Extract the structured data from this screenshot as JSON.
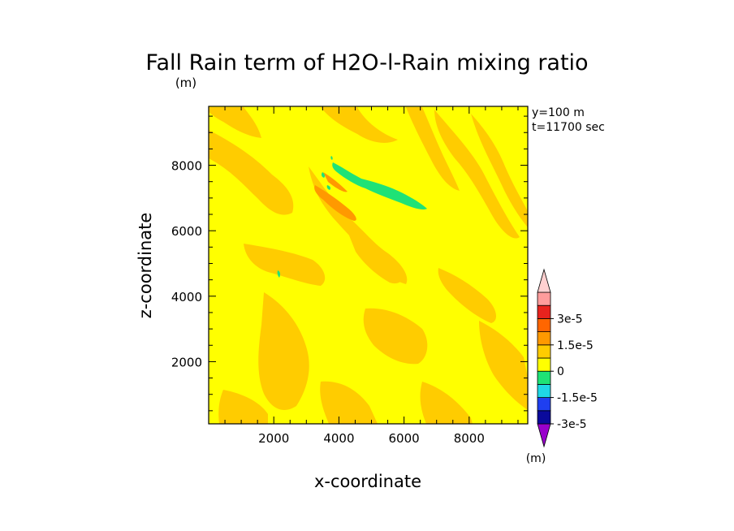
{
  "chart_data": {
    "type": "heatmap",
    "title": "Fall Rain term of H2O-l-Rain mixing ratio",
    "title_unit": "(m)",
    "xlabel": "x-coordinate",
    "ylabel": "z-coordinate",
    "xlim": [
      0,
      9800
    ],
    "ylim": [
      100,
      9800
    ],
    "x_ticks": [
      2000,
      4000,
      6000,
      8000
    ],
    "y_ticks": [
      2000,
      4000,
      6000,
      8000
    ],
    "x_tick_labels": [
      "2000",
      "4000",
      "6000",
      "8000"
    ],
    "y_tick_labels": [
      "2000",
      "4000",
      "6000",
      "8000"
    ],
    "annotations": [
      "y=100 m",
      "t=11700 sec"
    ],
    "colorbar": {
      "unit": "(m)",
      "levels": [
        -3e-05,
        -2.25e-05,
        -1.5e-05,
        -7.5e-06,
        0,
        7.5e-06,
        1.5e-05,
        2.25e-05,
        3e-05
      ],
      "colors": [
        "#9900cc",
        "#0a0a9c",
        "#1f3ff0",
        "#1fd7e6",
        "#1fe276",
        "#ffff00",
        "#ffcc00",
        "#ff9900",
        "#ff6600",
        "#e8231e",
        "#ff9c9c",
        "#ffd0d0"
      ],
      "tick_labels": [
        "3e-5",
        "1.5e-5",
        "0",
        "-1.5e-5",
        "-3e-5"
      ]
    },
    "regions": [
      {
        "name": "background",
        "range": [
          0,
          7.5e-06
        ],
        "color": "#ffff00"
      },
      {
        "name": "positive-bands",
        "range": [
          7.5e-06,
          1.5e-05
        ],
        "color": "#ffcc00"
      },
      {
        "name": "strong-positive-core",
        "range": [
          1.5e-05,
          2.25e-05
        ],
        "color": "#ff9900",
        "x": [
          3500,
          4500
        ],
        "z": [
          6500,
          7600
        ]
      },
      {
        "name": "negative-streak",
        "range": [
          -7.5e-06,
          0
        ],
        "color": "#1fe276",
        "x": [
          3900,
          6900
        ],
        "z": [
          6800,
          8200
        ]
      },
      {
        "name": "small-negative-patch",
        "range": [
          -7.5e-06,
          0
        ],
        "color": "#1fe276",
        "x": [
          2200,
          2350
        ],
        "z": [
          4600,
          4850
        ]
      }
    ]
  }
}
